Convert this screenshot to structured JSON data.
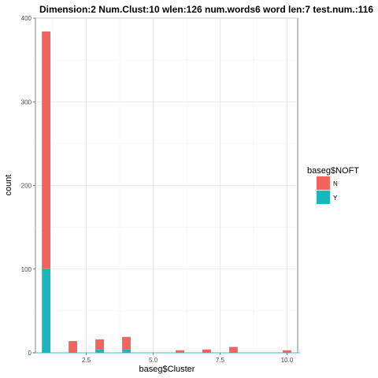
{
  "chart_data": {
    "type": "bar",
    "stacked": true,
    "title": "Dimension:2  Num.Clust:10  wlen:126  num.words6  word len:7  test.num.:116",
    "xlabel": "baseg$Cluster",
    "ylabel": "count",
    "xlim": [
      0.6,
      10.4
    ],
    "ylim": [
      0,
      400
    ],
    "xticks": [
      2.5,
      5.0,
      7.5,
      10.0
    ],
    "xtick_labels": [
      "2.5",
      "5.0",
      "7.5",
      "10.0"
    ],
    "yticks": [
      0,
      100,
      200,
      300,
      400
    ],
    "ytick_labels": [
      "0",
      "100",
      "200",
      "300",
      "400"
    ],
    "grid": true,
    "bar_width": 0.32,
    "x": [
      1,
      2,
      3,
      4,
      5,
      6,
      7,
      8,
      9,
      10
    ],
    "series": [
      {
        "name": "Y",
        "color": "#19B7BC",
        "values": [
          100,
          0,
          4,
          4,
          0,
          0,
          0,
          0,
          0,
          0
        ]
      },
      {
        "name": "N",
        "color": "#F3645F",
        "values": [
          284,
          14,
          12,
          15,
          0,
          3,
          4,
          7,
          0,
          3
        ]
      }
    ],
    "legend": {
      "title": "baseg$NOFT",
      "position": "right",
      "entries": [
        {
          "label": "N",
          "color": "#F3645F"
        },
        {
          "label": "Y",
          "color": "#19B7BC"
        }
      ]
    }
  }
}
